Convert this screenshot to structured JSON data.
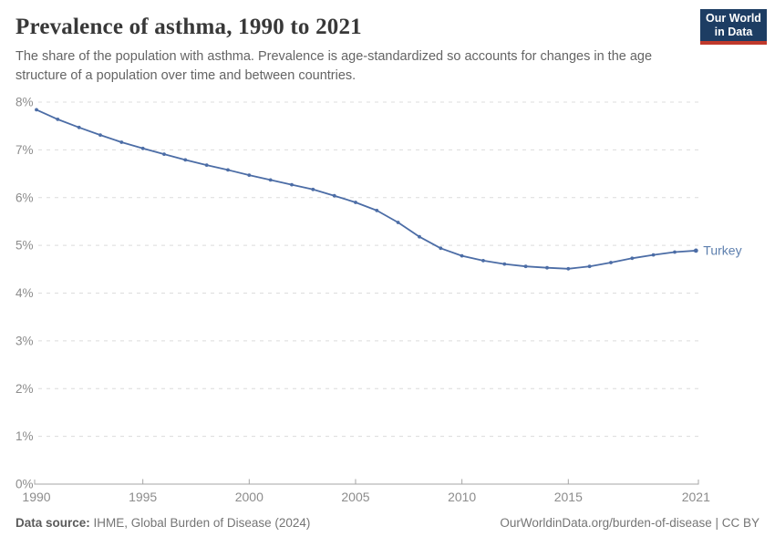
{
  "header": {
    "title": "Prevalence of asthma, 1990 to 2021",
    "subtitle": "The share of the population with asthma. Prevalence is age-standardized so accounts for changes in the age structure of a population over time and between countries.",
    "logo": {
      "line1": "Our World",
      "line2": "in Data"
    }
  },
  "footer": {
    "datasource_label": "Data source:",
    "datasource_value": " IHME, Global Burden of Disease (2024)",
    "link": "OurWorldinData.org/burden-of-disease | CC BY"
  },
  "colors": {
    "line": "#4c6da6",
    "entity_label": "#5d7fae",
    "grid": "#dcdcdc",
    "axis": "#a5a5a5",
    "tick_text": "#8c8c8c",
    "logo_bg": "#1d3d63",
    "logo_stripe": "#c0392b",
    "title_text": "#383838",
    "subtitle_text": "#646464",
    "footer_text": "#757575"
  },
  "chart_data": {
    "type": "line",
    "title": "Prevalence of asthma, 1990 to 2021",
    "xlabel": "",
    "ylabel": "",
    "xlim": [
      1990,
      2021
    ],
    "ylim": [
      0,
      8
    ],
    "grid": "horizontal-dashed",
    "legend_position": "end-of-line-label",
    "xticks": [
      1990,
      1995,
      2000,
      2005,
      2010,
      2015,
      2021
    ],
    "yticks": [
      {
        "value": 0,
        "label": "0%"
      },
      {
        "value": 1,
        "label": "1%"
      },
      {
        "value": 2,
        "label": "2%"
      },
      {
        "value": 3,
        "label": "3%"
      },
      {
        "value": 4,
        "label": "4%"
      },
      {
        "value": 5,
        "label": "5%"
      },
      {
        "value": 6,
        "label": "6%"
      },
      {
        "value": 7,
        "label": "7%"
      },
      {
        "value": 8,
        "label": "8%"
      }
    ],
    "x": [
      1990,
      1991,
      1992,
      1993,
      1994,
      1995,
      1996,
      1997,
      1998,
      1999,
      2000,
      2001,
      2002,
      2003,
      2004,
      2005,
      2006,
      2007,
      2008,
      2009,
      2010,
      2011,
      2012,
      2013,
      2014,
      2015,
      2016,
      2017,
      2018,
      2019,
      2020,
      2021
    ],
    "series": [
      {
        "name": "Turkey",
        "color": "#4c6da6",
        "unit": "%",
        "values": [
          7.84,
          7.64,
          7.47,
          7.31,
          7.16,
          7.03,
          6.91,
          6.79,
          6.68,
          6.58,
          6.47,
          6.37,
          6.27,
          6.17,
          6.04,
          5.9,
          5.73,
          5.48,
          5.18,
          4.94,
          4.78,
          4.68,
          4.61,
          4.56,
          4.53,
          4.51,
          4.56,
          4.64,
          4.73,
          4.8,
          4.86,
          4.89
        ]
      }
    ]
  }
}
